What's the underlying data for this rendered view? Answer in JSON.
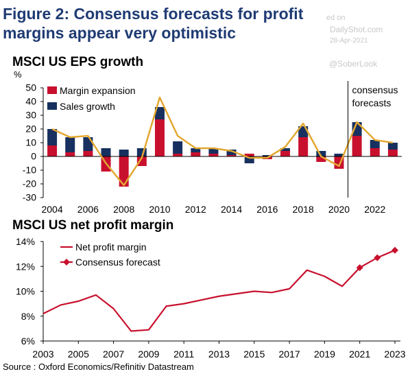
{
  "figure": {
    "title": "Figure 2: Consensus  forecasts  for profit margins appear very optimistic",
    "source": "Source : Oxford Economics/Refinitiv Datastream"
  },
  "watermark": {
    "line1": "ed on",
    "line2": "DailyShot.com",
    "line3": "28-Apr-2021",
    "line4": "@SoberLook"
  },
  "chart_data": [
    {
      "type": "bar",
      "title": "MSCI US EPS growth",
      "ylabel": "%",
      "ylim": [
        -30,
        50
      ],
      "yticks": [
        "50",
        "40",
        "30",
        "20",
        "10",
        "0",
        "-10",
        "-20",
        "-30"
      ],
      "x": [
        2004,
        2005,
        2006,
        2007,
        2008,
        2009,
        2010,
        2011,
        2012,
        2013,
        2014,
        2015,
        2016,
        2017,
        2018,
        2019,
        2020,
        2021,
        2022,
        2023
      ],
      "xticks": [
        "2004",
        "2006",
        "2008",
        "2010",
        "2012",
        "2014",
        "2016",
        "2018",
        "2020",
        "2022"
      ],
      "stacked": true,
      "series": [
        {
          "name": "Margin expansion",
          "color": "#c8102e",
          "values": [
            8,
            3,
            4,
            -11,
            -22,
            -7,
            27,
            2,
            3,
            2,
            1,
            2,
            -2,
            4,
            14,
            -4,
            -9,
            15,
            6,
            5
          ]
        },
        {
          "name": "Sales growth",
          "color": "#17305f",
          "values": [
            12,
            11,
            10,
            6,
            5,
            6,
            9,
            9,
            3,
            4,
            4,
            -5,
            1,
            2,
            8,
            4,
            2,
            10,
            6,
            5
          ]
        }
      ],
      "total_line": {
        "color": "#e2a831",
        "values": [
          20,
          14,
          15,
          -5,
          -21,
          -1,
          43,
          15,
          6,
          6,
          4,
          -1,
          -1,
          7,
          24,
          0,
          -7,
          25,
          12,
          10
        ]
      },
      "forecast_divider_after": 2020,
      "annotation": "consensus\nforecasts"
    },
    {
      "type": "line",
      "title": "MSCI US net profit margin",
      "ylim": [
        6,
        14
      ],
      "yticks": [
        "14%",
        "12%",
        "10%",
        "8%",
        "6%"
      ],
      "xticks": [
        "2003",
        "2005",
        "2007",
        "2009",
        "2011",
        "2013",
        "2015",
        "2017",
        "2019",
        "2021",
        "2023"
      ],
      "series": [
        {
          "name": "Net profit margin",
          "color": "#c8102e",
          "x": [
            2003,
            2004,
            2005,
            2006,
            2007,
            2008,
            2009,
            2010,
            2011,
            2012,
            2013,
            2014,
            2015,
            2016,
            2017,
            2018,
            2019,
            2020,
            2021
          ],
          "values": [
            8.2,
            8.9,
            9.2,
            9.7,
            8.6,
            6.8,
            6.9,
            8.8,
            9.0,
            9.3,
            9.6,
            9.8,
            10.0,
            9.9,
            10.2,
            11.7,
            11.2,
            10.4,
            11.9
          ]
        },
        {
          "name": "Consensus forecast",
          "color": "#c8102e",
          "x": [
            2021,
            2022,
            2023
          ],
          "values": [
            11.9,
            12.7,
            13.3
          ]
        }
      ]
    }
  ]
}
